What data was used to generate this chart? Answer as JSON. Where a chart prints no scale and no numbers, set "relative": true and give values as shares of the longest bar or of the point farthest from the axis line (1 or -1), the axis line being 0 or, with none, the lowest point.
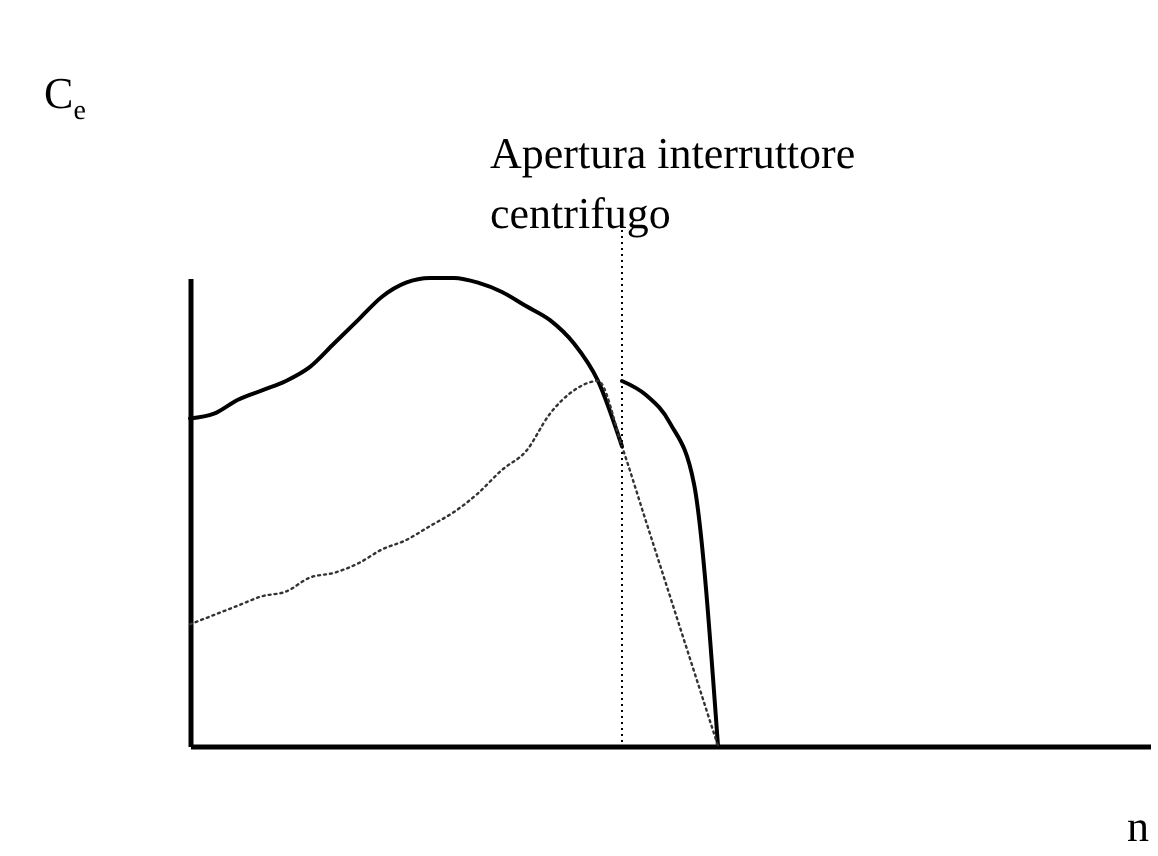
{
  "chart_data": {
    "type": "line",
    "relative": true,
    "xlabel": "n",
    "ylabel": "C$_{e}$",
    "categories": [
      null,
      null,
      null,
      null,
      null,
      null,
      null,
      null,
      null,
      null,
      null,
      null,
      null,
      null,
      null,
      null,
      null,
      null,
      null,
      null,
      null,
      null,
      null,
      null,
      null,
      null,
      null,
      null,
      null,
      null,
      null,
      null,
      null,
      null,
      null,
      null,
      null,
      null,
      null,
      null,
      null
    ],
    "series": [
      {
        "color": "#000000",
        "line_style": "solid",
        "values": [
          0.7,
          0.71,
          0.74,
          0.76,
          0.78,
          0.81,
          0.86,
          0.91,
          0.96,
          0.99,
          1,
          1.0,
          0.99,
          0.97,
          0.94,
          0.91,
          0.86,
          0.78,
          0.64,
          null,
          null,
          null,
          null,
          null,
          null,
          null,
          null,
          null,
          null,
          null,
          null,
          null,
          null,
          null,
          null,
          null,
          null,
          null,
          null,
          null,
          null
        ]
      },
      {
        "color": "#000000",
        "line_style": "solid",
        "values": [
          null,
          null,
          null,
          null,
          null,
          null,
          null,
          null,
          null,
          null,
          null,
          null,
          null,
          null,
          null,
          null,
          null,
          null,
          0.78,
          0.75,
          0.69,
          0.56,
          0,
          null,
          null,
          null,
          null,
          null,
          null,
          null,
          null,
          null,
          null,
          null,
          null,
          null,
          null,
          null,
          null,
          null,
          null
        ]
      },
      {
        "color": "#333333",
        "line_style": "dotted",
        "values": [
          0.26,
          0.28,
          0.3,
          0.32,
          0.33,
          0.36,
          0.37,
          0.39,
          0.42,
          0.44,
          0.47,
          0.5,
          0.54,
          0.59,
          0.63,
          0.71,
          0.76,
          0.78,
          0.64,
          0.48,
          0.32,
          0.16,
          0,
          null,
          null,
          null,
          null,
          null,
          null,
          null,
          null,
          null,
          null,
          null,
          null,
          null,
          null,
          null,
          null,
          null,
          null
        ]
      }
    ],
    "annotations": [
      "Apertura interruttore centrifugo"
    ],
    "grid": false
  }
}
